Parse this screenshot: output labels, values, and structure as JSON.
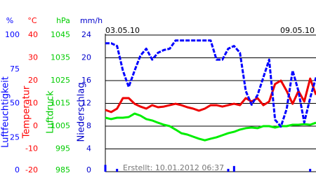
{
  "chart_data": {
    "type": "line",
    "start_date": "03.05.10",
    "end_date": "09.05.10",
    "created": "Erstellt: 10.01.2012 06:37",
    "grid": true,
    "grid_axis": 1,
    "axes": [
      {
        "unit": "%",
        "title": "Luftfeuchtigkeit",
        "color": "#0000ff",
        "ylim": [
          0,
          100
        ],
        "yticks": [
          0,
          25,
          50,
          75,
          100
        ]
      },
      {
        "unit": "°C",
        "title": "Temperatur",
        "color": "#ff0000",
        "ylim": [
          -20,
          40
        ],
        "yticks": [
          -20,
          -10,
          0,
          10,
          20,
          30,
          40
        ]
      },
      {
        "unit": "hPa",
        "title": "Luftdruck",
        "color": "#00cc00",
        "ylim": [
          985,
          1045
        ],
        "yticks": [
          985,
          995,
          1005,
          1015,
          1025,
          1035,
          1045
        ]
      },
      {
        "unit": "mm/h",
        "title": "Niederschlag",
        "color": "#0000cc",
        "ylim": [
          0,
          24
        ],
        "yticks": [
          0,
          4,
          8,
          12,
          16,
          20,
          24
        ]
      }
    ],
    "series": [
      {
        "axis": 3,
        "style": "bar",
        "color": "#0000ff",
        "values": [
          1.2,
          0,
          0.5,
          0,
          0,
          0,
          0,
          0,
          0,
          0,
          0,
          0,
          0,
          0,
          0,
          0,
          0,
          0,
          0,
          0,
          0,
          0.5,
          1.0,
          0,
          0,
          0,
          0,
          0,
          0,
          0,
          0,
          0,
          0,
          0,
          0,
          0.5,
          0
        ]
      },
      {
        "axis": 2,
        "style": "line",
        "color": "#00ee00",
        "values": [
          1008.7,
          1008.1,
          1008.7,
          1008.7,
          1009,
          1010.5,
          1009.6,
          1008.1,
          1007.5,
          1006.5,
          1005.6,
          1005,
          1003.5,
          1001.9,
          1001.3,
          1000.4,
          999.5,
          998.8,
          999.5,
          1000.1,
          1001,
          1001.9,
          1002.5,
          1003.5,
          1004.1,
          1004.4,
          1004.1,
          1005,
          1005,
          1004.4,
          1005,
          1005,
          1005.6,
          1005.6,
          1005.9,
          1005.6,
          1006.5
        ]
      },
      {
        "axis": 1,
        "style": "line",
        "color": "#ee0000",
        "values": [
          7.1,
          6.2,
          7.7,
          12.3,
          12.3,
          9.8,
          8.6,
          7.7,
          9.2,
          8.3,
          8.6,
          9.2,
          9.8,
          9.2,
          8.3,
          7.7,
          6.8,
          7.7,
          9.2,
          9.2,
          8.6,
          9.2,
          9.8,
          9.2,
          12.3,
          10.8,
          12.3,
          9.2,
          10.8,
          18.5,
          20,
          15.4,
          9.8,
          15.4,
          10.8,
          20.9,
          13.8
        ]
      },
      {
        "axis": 0,
        "style": "dashed",
        "color": "#0000ff",
        "values": [
          94,
          94,
          92,
          74,
          62,
          74,
          85,
          90,
          82,
          87,
          89,
          90,
          96,
          96,
          96,
          96,
          96,
          96,
          96,
          82,
          82,
          90,
          92,
          87,
          59,
          49,
          56,
          69,
          82,
          38,
          33,
          46,
          74,
          59,
          36,
          54,
          69
        ]
      }
    ]
  }
}
